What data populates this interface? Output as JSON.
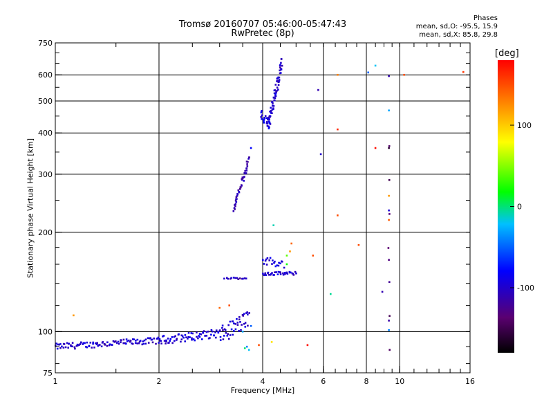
{
  "chart_data": {
    "type": "scatter",
    "title": "Tromsø 20160707 05:46:00-05:47:43",
    "subtitle": "RwPretec (8p)",
    "xlabel": "Frequency [MHz]",
    "ylabel": "Stationary phase Virtual Height [km]",
    "xscale": "log",
    "yscale": "log",
    "xlim": [
      1,
      16
    ],
    "ylim": [
      75,
      750
    ],
    "grid": true,
    "x_ticks": [
      1,
      2,
      4,
      6,
      8,
      10,
      16
    ],
    "x_tick_labels": [
      "1",
      "2",
      "4",
      "6",
      "8",
      "10",
      "16"
    ],
    "y_ticks": [
      75,
      100,
      200,
      300,
      400,
      500,
      600,
      750
    ],
    "y_tick_labels": [
      "75",
      "100",
      "200",
      "300",
      "400",
      "500",
      "600",
      "750"
    ],
    "legend": {
      "title": "Phases",
      "lines": [
        "mean, sd,O: -95.5, 15.9",
        "mean, sd,X: 85.8, 29.8"
      ],
      "placement": "top-right"
    },
    "colorbar": {
      "label": "[deg]",
      "range": [
        -180,
        180
      ],
      "ticks": [
        100,
        0,
        -100
      ],
      "tick_labels": [
        "100",
        "0",
        "-100"
      ],
      "colormap": "rainbow"
    },
    "series": [
      {
        "clusters": [
          {
            "kind": "trace",
            "from": [
              1.0,
              90
            ],
            "to": [
              2.0,
              94
            ],
            "n": 110,
            "jitter": 0.022,
            "phase": -100
          },
          {
            "kind": "trace",
            "from": [
              2.0,
              94
            ],
            "to": [
              3.0,
              99
            ],
            "n": 70,
            "jitter": 0.03,
            "phase": -95
          },
          {
            "kind": "trace",
            "from": [
              3.0,
              97
            ],
            "to": [
              3.65,
              110
            ],
            "n": 45,
            "jitter": 0.06,
            "phase": -100
          },
          {
            "kind": "trace",
            "from": [
              3.1,
              145
            ],
            "to": [
              3.6,
              145
            ],
            "n": 14,
            "jitter": 0.006,
            "phase": -105
          },
          {
            "kind": "trace",
            "from": [
              3.3,
              235
            ],
            "to": [
              3.65,
              335
            ],
            "n": 45,
            "jitter": 0.025,
            "phase": -110
          },
          {
            "kind": "trace",
            "from": [
              4.0,
              150
            ],
            "to": [
              5.0,
              150
            ],
            "n": 35,
            "jitter": 0.012,
            "phase": -100
          },
          {
            "kind": "trace",
            "from": [
              4.0,
              165
            ],
            "to": [
              4.6,
              160
            ],
            "n": 20,
            "jitter": 0.03,
            "phase": -95
          },
          {
            "kind": "trace",
            "from": [
              4.15,
              420
            ],
            "to": [
              4.55,
              650
            ],
            "n": 70,
            "jitter": 0.045,
            "phase": -100
          },
          {
            "kind": "trace",
            "from": [
              3.95,
              460
            ],
            "to": [
              4.2,
              420
            ],
            "n": 20,
            "jitter": 0.03,
            "phase": -90
          },
          {
            "kind": "trace",
            "from": [
              9.3,
              365
            ],
            "to": [
              9.3,
              88
            ],
            "n": 7,
            "jitter": 0.0,
            "phase": -135
          }
        ],
        "points": [
          [
            1.13,
            112,
            120
          ],
          [
            3.0,
            118,
            140
          ],
          [
            3.2,
            120,
            150
          ],
          [
            3.9,
            91,
            150
          ],
          [
            4.25,
            93,
            90
          ],
          [
            4.85,
            185,
            140
          ],
          [
            4.8,
            175,
            120
          ],
          [
            4.7,
            170,
            40
          ],
          [
            4.7,
            160,
            20
          ],
          [
            5.4,
            91,
            175
          ],
          [
            5.6,
            170,
            150
          ],
          [
            5.8,
            540,
            -110
          ],
          [
            5.9,
            345,
            -100
          ],
          [
            6.3,
            130,
            -5
          ],
          [
            6.6,
            600,
            130
          ],
          [
            6.6,
            410,
            165
          ],
          [
            6.6,
            225,
            150
          ],
          [
            7.6,
            183,
            150
          ],
          [
            8.1,
            610,
            -50
          ],
          [
            8.5,
            640,
            -20
          ],
          [
            8.5,
            360,
            175
          ],
          [
            8.9,
            132,
            -110
          ],
          [
            9.3,
            595,
            -110
          ],
          [
            9.3,
            468,
            -30
          ],
          [
            9.3,
            360,
            -160
          ],
          [
            9.3,
            258,
            120
          ],
          [
            9.3,
            233,
            -95
          ],
          [
            9.3,
            218,
            145
          ],
          [
            9.3,
            165,
            -130
          ],
          [
            9.3,
            108,
            -115
          ],
          [
            9.3,
            101,
            -40
          ],
          [
            10.3,
            600,
            150
          ],
          [
            15.3,
            612,
            160
          ],
          [
            4.3,
            210,
            -10
          ],
          [
            3.7,
            360,
            -80
          ],
          [
            3.6,
            90,
            -40
          ],
          [
            3.65,
            88,
            -20
          ],
          [
            3.55,
            89,
            0
          ],
          [
            3.5,
            100,
            -30
          ],
          [
            3.7,
            104,
            -50
          ]
        ]
      }
    ]
  }
}
